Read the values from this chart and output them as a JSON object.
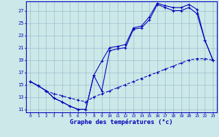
{
  "xlabel": "Graphe des températures (°c)",
  "bg_color": "#cce8e8",
  "line_color": "#0000bb",
  "grid_color": "#9bbccc",
  "hours": [
    0,
    1,
    2,
    3,
    4,
    5,
    6,
    7,
    8,
    9,
    10,
    11,
    12,
    13,
    14,
    15,
    16,
    17,
    18,
    19,
    20,
    21,
    22,
    23
  ],
  "temp_main": [
    15.5,
    14.8,
    14.0,
    12.8,
    12.2,
    11.5,
    11.0,
    11.0,
    16.5,
    14.0,
    20.5,
    20.8,
    21.0,
    24.0,
    24.2,
    25.5,
    28.0,
    27.5,
    27.0,
    27.0,
    27.5,
    26.5,
    22.2,
    19.0
  ],
  "temp_upper": [
    15.5,
    14.8,
    14.0,
    12.8,
    12.2,
    11.5,
    11.0,
    11.0,
    16.5,
    18.8,
    21.0,
    21.2,
    21.5,
    24.2,
    24.5,
    26.0,
    28.2,
    27.8,
    27.5,
    27.5,
    28.0,
    27.2,
    22.2,
    19.0
  ],
  "temp_lower": [
    15.5,
    14.8,
    14.0,
    13.5,
    13.2,
    12.8,
    12.5,
    12.2,
    13.0,
    13.5,
    14.0,
    14.5,
    15.0,
    15.5,
    16.0,
    16.5,
    17.0,
    17.5,
    18.0,
    18.5,
    19.0,
    19.2,
    19.2,
    19.0
  ],
  "ylim": [
    10.5,
    28.5
  ],
  "yticks": [
    11,
    13,
    15,
    17,
    19,
    21,
    23,
    25,
    27
  ],
  "xlim": [
    -0.5,
    23.5
  ],
  "figsize": [
    3.2,
    2.0
  ],
  "dpi": 100
}
